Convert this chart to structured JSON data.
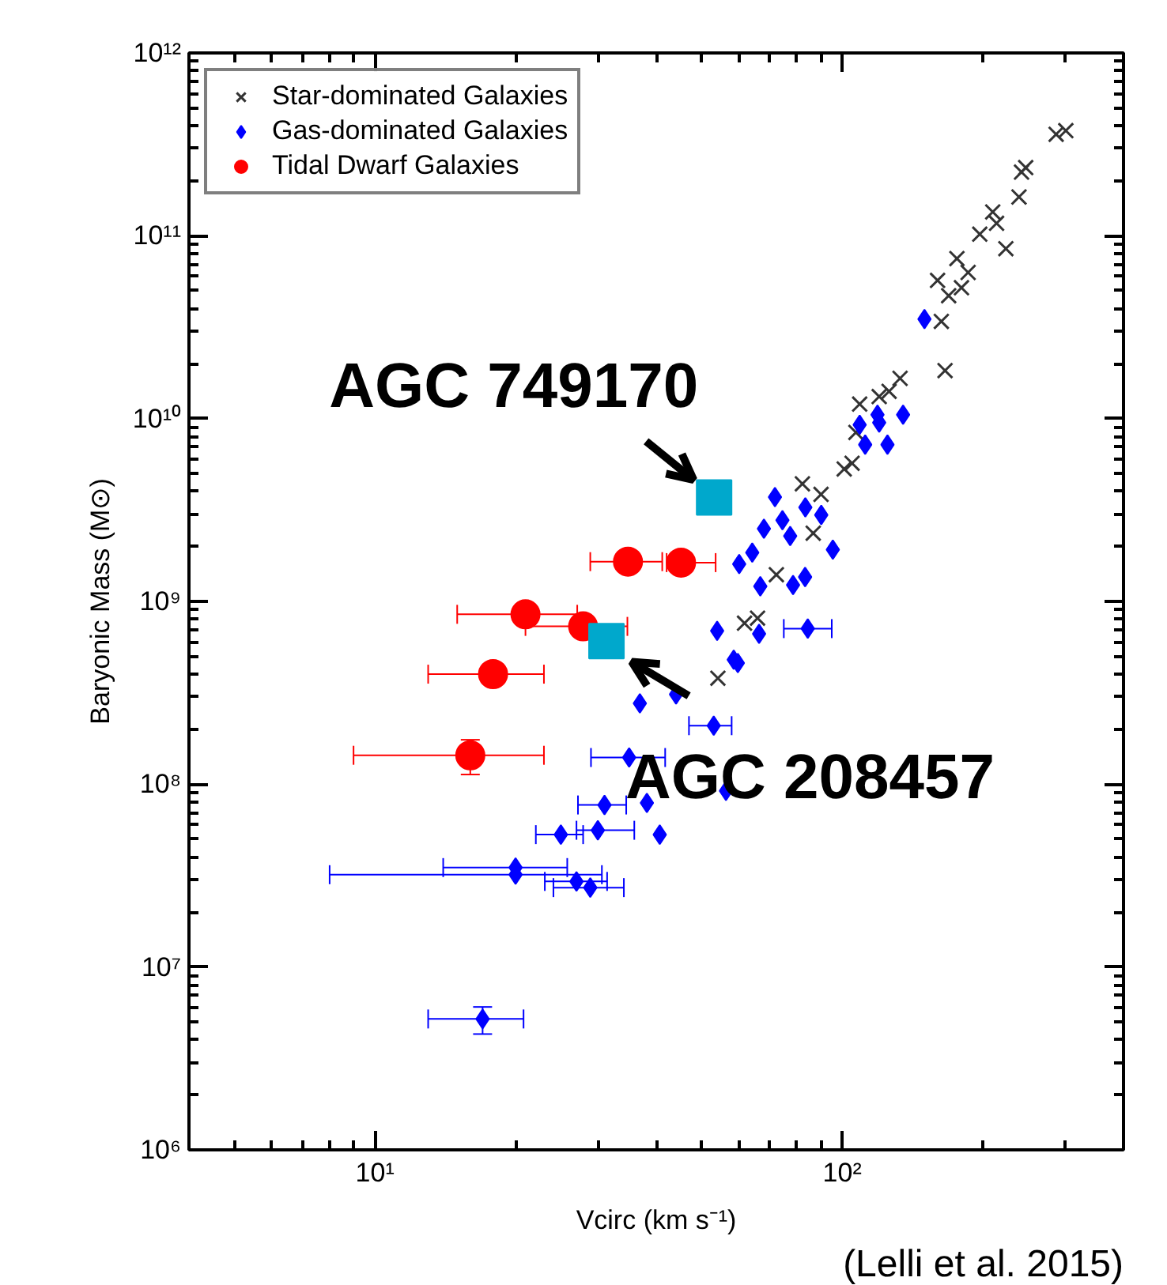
{
  "chart_data": {
    "type": "scatter",
    "xlabel": "Vcirc (km s⁻¹)",
    "ylabel": "Baryonic Mass (M⊙)",
    "log": "xy",
    "grid": false,
    "legend": "top left",
    "xlim": [
      4,
      400
    ],
    "ylim": [
      1000000,
      1000000000000
    ],
    "xticks": [
      {
        "value": 10,
        "label": "10¹"
      },
      {
        "value": 100,
        "label": "10²"
      }
    ],
    "yticks": [
      {
        "value": 1000000,
        "label": "10⁶"
      },
      {
        "value": 10000000,
        "label": "10⁷"
      },
      {
        "value": 100000000,
        "label": "10⁸"
      },
      {
        "value": 1000000000,
        "label": "10⁹"
      },
      {
        "value": 10000000000,
        "label": "10¹⁰"
      },
      {
        "value": 100000000000,
        "label": "10¹¹"
      },
      {
        "value": 1000000000000,
        "label": "10¹²"
      }
    ],
    "series": [
      {
        "name": "Star-dominated Galaxies",
        "color": "#333333",
        "marker": "cross",
        "x": [
          301,
          287,
          247,
          242,
          239,
          210,
          214,
          197,
          224,
          176,
          186,
          160,
          180,
          169,
          163,
          166,
          133,
          126,
          120,
          109,
          107,
          105,
          101,
          82.2,
          90.1,
          86.7,
          72.3,
          65.9,
          61.8,
          54.2
        ],
        "values": [
          376000000000.0,
          359000000000.0,
          236000000000.0,
          223000000000.0,
          163000000000.0,
          135000000000.0,
          117000000000.0,
          102000000000.0,
          85000000000.0,
          75000000000.0,
          63000000000.0,
          57000000000.0,
          52000000000.0,
          47000000000.0,
          34000000000.0,
          18300000000.0,
          16600000000.0,
          14100000000.0,
          13200000000.0,
          12000000000.0,
          8400000000.0,
          5700000000.0,
          5300000000.0,
          4400000000.0,
          3850000000.0,
          2360000000.0,
          1400000000.0,
          810000000.0,
          760000000.0,
          380000000.0
        ]
      },
      {
        "name": "Gas-dominated Galaxies",
        "color": "#0000ff",
        "marker": "diamond",
        "x": [
          17.0,
          20.0,
          20.0,
          27.0,
          28.9,
          25.0,
          30.0,
          31.0,
          38.2,
          40.7,
          35.0,
          36.9,
          44.1,
          53.1,
          54.0,
          58.6,
          59.8,
          66.4,
          84.4,
          60.2,
          64.2,
          66.8,
          78.5,
          83.3,
          95.5,
          68.0,
          77.4,
          71.8,
          74.5,
          83.4,
          90.2,
          56.4,
          109,
          119,
          135,
          112,
          125,
          120,
          150
        ],
        "values": [
          5200000.0,
          35000000.0,
          32000000.0,
          29400000.0,
          27200000.0,
          53000000.0,
          56000000.0,
          77000000.0,
          79000000.0,
          53000000.0,
          140000000.0,
          277000000.0,
          310000000.0,
          209000000.0,
          690000000.0,
          480000000.0,
          460000000.0,
          665000000.0,
          710000000.0,
          1600000000.0,
          1850000000.0,
          1210000000.0,
          1230000000.0,
          1360000000.0,
          1920000000.0,
          2500000000.0,
          2280000000.0,
          3720000000.0,
          2780000000.0,
          3270000000.0,
          2970000000.0,
          92000000.0,
          9250000000.0,
          10500000000.0,
          10500000000.0,
          7200000000.0,
          7200000000.0,
          9500000000.0,
          35000000000.0
        ],
        "xerrors": [
          [
            13.0,
            20.8
          ],
          [
            14.0,
            25.8
          ],
          [
            8.0,
            30.6
          ],
          [
            23.1,
            31.4
          ],
          [
            24.1,
            34.1
          ],
          [
            22.1,
            27.9
          ],
          [
            27.0,
            35.9
          ],
          [
            27.2,
            34.5
          ],
          null,
          null,
          [
            29.0,
            41.8
          ],
          null,
          null,
          [
            47,
            58
          ],
          null,
          null,
          null,
          null,
          [
            75,
            95
          ],
          null,
          null,
          null,
          null,
          null,
          null,
          null,
          null,
          null,
          null,
          null,
          null,
          null,
          null,
          null,
          null,
          null,
          null,
          null,
          null
        ],
        "errors": [
          [
            4300000.0,
            6050000.0
          ],
          null,
          null,
          null,
          null,
          null,
          null,
          null,
          null,
          null,
          null,
          null,
          null,
          null,
          null,
          null,
          null,
          null,
          null,
          null,
          null,
          null,
          null,
          null,
          null,
          null,
          null,
          null,
          null,
          null,
          null,
          null,
          null,
          null,
          null,
          null,
          null,
          null,
          null
        ]
      },
      {
        "name": "Tidal Dwarf Galaxies",
        "color": "#ff0000",
        "marker": "circle",
        "x": [
          34.8,
          45.2,
          21.0,
          27.9,
          17.9,
          16.0
        ],
        "values": [
          1650000000.0,
          1630000000.0,
          850000000.0,
          730000000.0,
          400000000.0,
          144000000.0
        ],
        "xerrors": [
          [
            28.9,
            41.2
          ],
          [
            42.1,
            53.6
          ],
          [
            15.0,
            27.1
          ],
          [
            21.0,
            34.7
          ],
          [
            13.0,
            23.0
          ],
          [
            9.0,
            23.0
          ]
        ],
        "errors": [
          null,
          null,
          null,
          null,
          null,
          [
            113000000.0,
            175000000.0
          ]
        ]
      },
      {
        "color": "#00a8cc",
        "marker": "square",
        "x": [
          53.2,
          31.3
        ],
        "values": [
          3700000000.0,
          607000000.0
        ]
      }
    ],
    "annotations": [
      {
        "text": "AGC 749170",
        "x": 53.2,
        "y": 3700000000.0
      },
      {
        "text": "AGC 208457",
        "x": 31.3,
        "y": 607000000.0
      },
      "(Lelli et al. 2015)"
    ]
  }
}
